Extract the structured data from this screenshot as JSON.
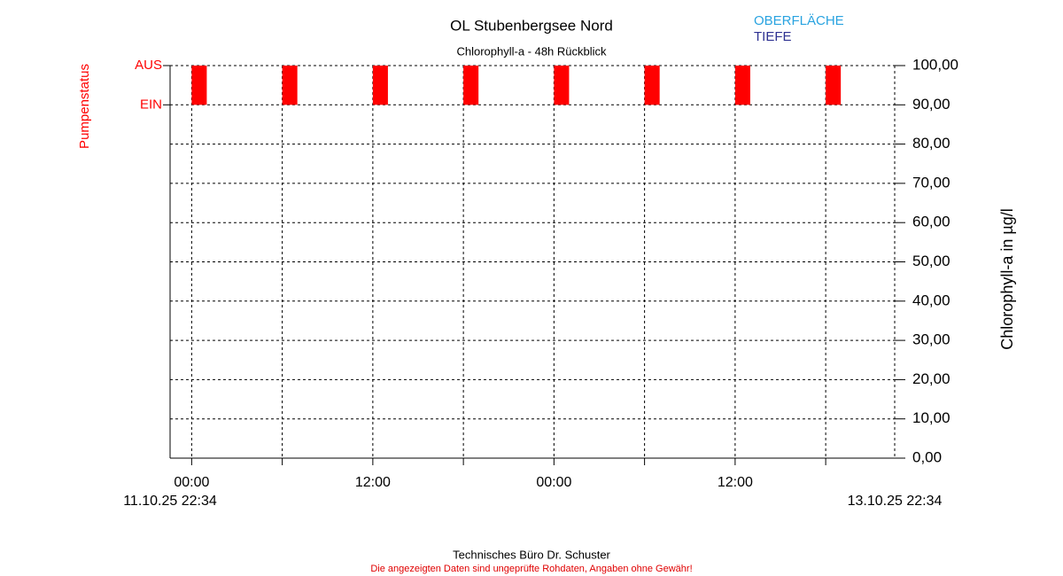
{
  "chart_data": {
    "type": "pump-status",
    "title": "OL Stubenbergsee Nord",
    "subtitle": "Chlorophyll-a - 48h Rückblick",
    "ylabel": "Chlorophyll-a in µg/l",
    "ylim": [
      0,
      100
    ],
    "yticks": [
      {
        "value": 0,
        "label": "0,00"
      },
      {
        "value": 10,
        "label": "10,00"
      },
      {
        "value": 20,
        "label": "20,00"
      },
      {
        "value": 30,
        "label": "30,00"
      },
      {
        "value": 40,
        "label": "40,00"
      },
      {
        "value": 50,
        "label": "50,00"
      },
      {
        "value": 60,
        "label": "60,00"
      },
      {
        "value": 70,
        "label": "70,00"
      },
      {
        "value": 80,
        "label": "80,00"
      },
      {
        "value": 90,
        "label": "90,00"
      },
      {
        "value": 100,
        "label": "100,00"
      }
    ],
    "xlim": [
      0,
      48
    ],
    "xlim_labels": [
      "11.10.25 22:34",
      "13.10.25 22:34"
    ],
    "xticks": [
      {
        "value": 1.43,
        "label": "00:00"
      },
      {
        "value": 13.43,
        "label": "12:00"
      },
      {
        "value": 25.43,
        "label": "00:00"
      },
      {
        "value": 37.43,
        "label": "12:00"
      }
    ],
    "x_minor_ticks": [
      7.43,
      19.43,
      31.43,
      43.43
    ],
    "grid": true,
    "series": [
      {
        "name": "OBERFLÄCHE",
        "color": "#29a3e0",
        "x": [],
        "values": []
      },
      {
        "name": "TIEFE",
        "color": "#2e3192",
        "x": [],
        "values": []
      }
    ],
    "pump": {
      "name": "Pumpenstatus",
      "color": "#ff0000",
      "ylim": [
        -9,
        1
      ],
      "yticks": [
        {
          "value": 0,
          "label": "EIN"
        },
        {
          "value": 1,
          "label": "AUS"
        }
      ],
      "x_start": [
        1.43,
        7.43,
        13.43,
        19.43,
        25.43,
        31.43,
        37.43,
        43.43
      ],
      "x_end": [
        2.43,
        8.43,
        14.43,
        20.43,
        26.43,
        32.43,
        38.43,
        44.43
      ],
      "values": [
        1,
        1,
        1,
        1,
        1,
        1,
        1,
        1
      ]
    },
    "footer": "Technisches Büro Dr. Schuster",
    "disclaimer": "Die angezeigten Daten sind ungeprüfte Rohdaten, Angaben ohne Gewähr!"
  }
}
